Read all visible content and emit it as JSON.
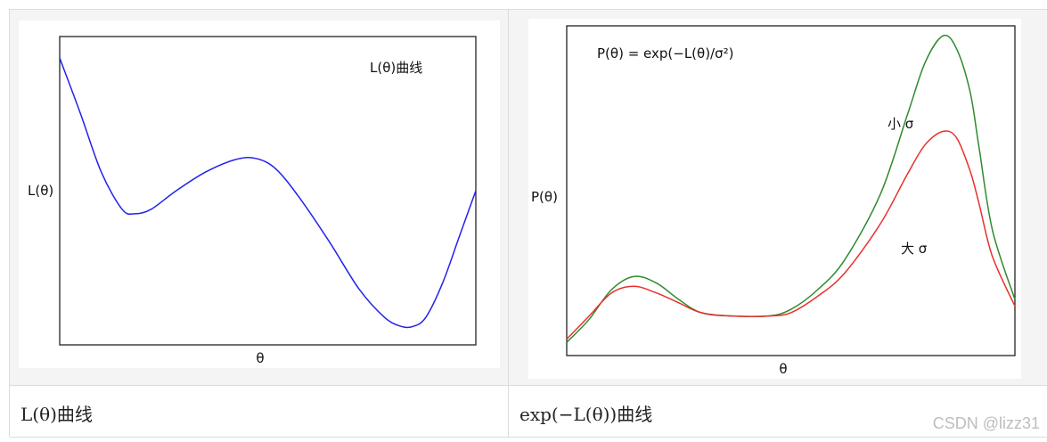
{
  "table": {
    "captions": [
      "L(θ)曲线",
      "exp(−L(θ))曲线"
    ]
  },
  "watermark": "CSDN @lizz31",
  "colors": {
    "blue": "#2222ee",
    "green": "#2e8b2e",
    "red": "#e8302c"
  },
  "chart_data": [
    {
      "type": "line",
      "title": "L(θ)曲线",
      "xlabel": "θ",
      "ylabel": "L(θ)",
      "grid": false,
      "series": [
        {
          "color": "#2222ee",
          "x": [
            0.0,
            0.05,
            0.1,
            0.15,
            0.18,
            0.22,
            0.28,
            0.35,
            0.42,
            0.47,
            0.52,
            0.58,
            0.65,
            0.72,
            0.78,
            0.82,
            0.85,
            0.88,
            0.92,
            0.96,
            1.0
          ],
          "y": [
            0.93,
            0.75,
            0.56,
            0.44,
            0.425,
            0.44,
            0.5,
            0.56,
            0.6,
            0.605,
            0.57,
            0.47,
            0.33,
            0.18,
            0.09,
            0.06,
            0.06,
            0.09,
            0.2,
            0.35,
            0.5
          ]
        }
      ]
    },
    {
      "type": "line",
      "title": "P(θ) = exp(−L(θ)/σ²)",
      "xlabel": "θ",
      "ylabel": "P(θ)",
      "grid": false,
      "series": [
        {
          "name": "小 σ",
          "color": "#2e8b2e",
          "x": [
            0.0,
            0.05,
            0.1,
            0.15,
            0.2,
            0.25,
            0.3,
            0.37,
            0.45,
            0.5,
            0.56,
            0.62,
            0.7,
            0.76,
            0.8,
            0.84,
            0.87,
            0.9,
            0.92,
            0.95,
            1.0
          ],
          "y": [
            0.04,
            0.11,
            0.2,
            0.24,
            0.22,
            0.17,
            0.13,
            0.12,
            0.12,
            0.14,
            0.2,
            0.29,
            0.49,
            0.73,
            0.89,
            0.97,
            0.93,
            0.8,
            0.63,
            0.38,
            0.17
          ]
        },
        {
          "name": "大 σ",
          "color": "#e8302c",
          "x": [
            0.0,
            0.05,
            0.1,
            0.15,
            0.2,
            0.25,
            0.3,
            0.37,
            0.45,
            0.5,
            0.56,
            0.62,
            0.7,
            0.76,
            0.8,
            0.84,
            0.87,
            0.9,
            0.92,
            0.95,
            1.0
          ],
          "y": [
            0.05,
            0.12,
            0.19,
            0.21,
            0.19,
            0.16,
            0.13,
            0.12,
            0.12,
            0.13,
            0.18,
            0.25,
            0.4,
            0.55,
            0.64,
            0.68,
            0.66,
            0.56,
            0.46,
            0.3,
            0.15
          ]
        }
      ]
    }
  ]
}
